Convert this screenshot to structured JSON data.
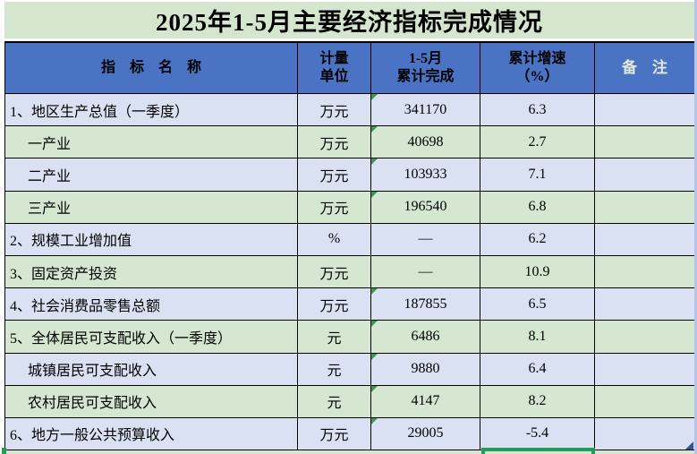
{
  "title": "2025年1-5月主要经济指标完成情况",
  "colors": {
    "title_bg": "#d4e6ce",
    "header_bg": "#4a73c4",
    "row_blue": "#d9e1f3",
    "row_green": "#d5e7d0",
    "remark_header_text": "#dfeadb",
    "selection_green": "#1f9d5b",
    "flag_green": "#2f9e4f",
    "edge_strip": "#b3c6e7"
  },
  "header": {
    "name": "指　标　名　称",
    "unit_line1": "计量",
    "unit_line2": "单位",
    "value_line1": "1-5月",
    "value_line2": "累计完成",
    "growth_line1": "累计增速",
    "growth_line2": "（%）",
    "remark": "备　注"
  },
  "rows": [
    {
      "name": "1、地区生产总值（一季度）",
      "indent": false,
      "unit": "万元",
      "value": "341170",
      "growth": "6.3",
      "remark": "",
      "flag": true
    },
    {
      "name": "一产业",
      "indent": true,
      "unit": "万元",
      "value": "40698",
      "growth": "2.7",
      "remark": "",
      "flag": true
    },
    {
      "name": "二产业",
      "indent": true,
      "unit": "万元",
      "value": "103933",
      "growth": "7.1",
      "remark": "",
      "flag": true
    },
    {
      "name": "三产业",
      "indent": true,
      "unit": "万元",
      "value": "196540",
      "growth": "6.8",
      "remark": "",
      "flag": true
    },
    {
      "name": "2、规模工业增加值",
      "indent": false,
      "unit": "%",
      "value": "—",
      "growth": "6.2",
      "remark": "",
      "flag": false
    },
    {
      "name": "3、固定资产投资",
      "indent": false,
      "unit": "万元",
      "value": "—",
      "growth": "10.9",
      "remark": "",
      "flag": false
    },
    {
      "name": "4、社会消费品零售总额",
      "indent": false,
      "unit": "万元",
      "value": "187855",
      "growth": "6.5",
      "remark": "",
      "flag": true
    },
    {
      "name": "5、全体居民可支配收入（一季度）",
      "indent": false,
      "unit": "元",
      "value": "6486",
      "growth": "8.1",
      "remark": "",
      "flag": true
    },
    {
      "name": "城镇居民可支配收入",
      "indent": true,
      "unit": "元",
      "value": "9880",
      "growth": "6.4",
      "remark": "",
      "flag": true
    },
    {
      "name": "农村居民可支配收入",
      "indent": true,
      "unit": "元",
      "value": "4147",
      "growth": "8.2",
      "remark": "",
      "flag": true
    },
    {
      "name": "6、地方一般公共预算收入",
      "indent": false,
      "unit": "万元",
      "value": "29005",
      "growth": "-5.4",
      "remark": "",
      "flag": true
    }
  ]
}
